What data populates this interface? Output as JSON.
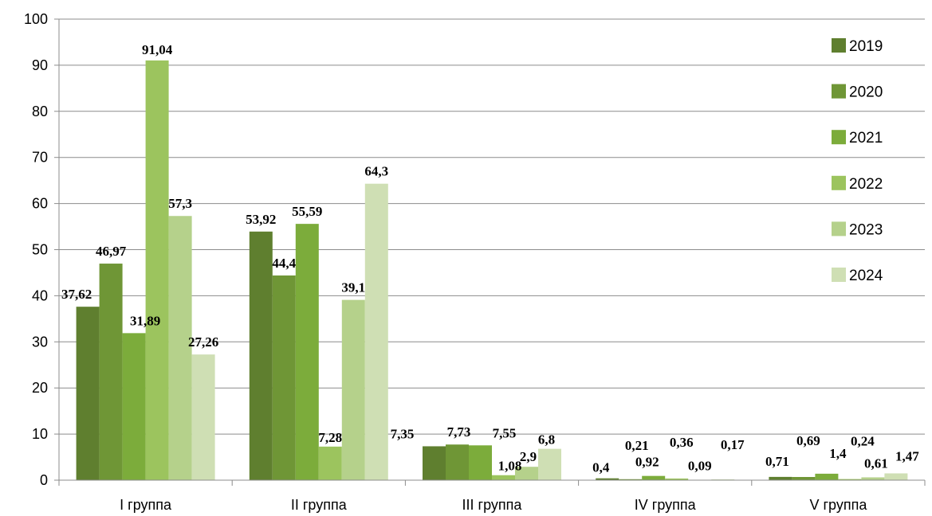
{
  "chart_data": {
    "type": "bar",
    "categories": [
      "I группа",
      "II группа",
      "III группа",
      "IV группа",
      "V группа"
    ],
    "series": [
      {
        "name": "2019",
        "values": [
          37.62,
          53.92,
          7.35,
          0.4,
          0.71
        ],
        "labels": [
          "37,62",
          "53,92",
          "7,35",
          "0,4",
          "0,71"
        ],
        "color": "#5f7f2f"
      },
      {
        "name": "2020",
        "values": [
          46.97,
          44.4,
          7.73,
          0.21,
          0.69
        ],
        "labels": [
          "46,97",
          "44,4",
          "7,73",
          "0,21",
          "0,69"
        ],
        "color": "#6f9636"
      },
      {
        "name": "2021",
        "values": [
          31.89,
          55.59,
          7.55,
          0.92,
          1.4
        ],
        "labels": [
          "31,89",
          "55,59",
          "7,55",
          "0,92",
          "1,4"
        ],
        "color": "#7cac3b"
      },
      {
        "name": "2022",
        "values": [
          91.04,
          7.28,
          1.08,
          0.36,
          0.24
        ],
        "labels": [
          "91,04",
          "7,28",
          "1,08",
          "0,36",
          "0,24"
        ],
        "color": "#9cc45e"
      },
      {
        "name": "2023",
        "values": [
          57.3,
          39.1,
          2.9,
          0.09,
          0.61
        ],
        "labels": [
          "57,3",
          "39,1",
          "2,9",
          "0,09",
          "0,61"
        ],
        "color": "#b5d18b"
      },
      {
        "name": "2024",
        "values": [
          27.26,
          64.3,
          6.8,
          0.17,
          1.47
        ],
        "labels": [
          "27,26",
          "64,3",
          "6,8",
          "0,17",
          "1,47"
        ],
        "color": "#cfdfb4"
      }
    ],
    "yticks": [
      "0",
      "10",
      "20",
      "30",
      "40",
      "50",
      "60",
      "70",
      "80",
      "90",
      "100"
    ],
    "ylim": [
      0,
      100
    ],
    "grid": true,
    "legend": "right",
    "title": "",
    "xlabel": "",
    "ylabel": ""
  }
}
